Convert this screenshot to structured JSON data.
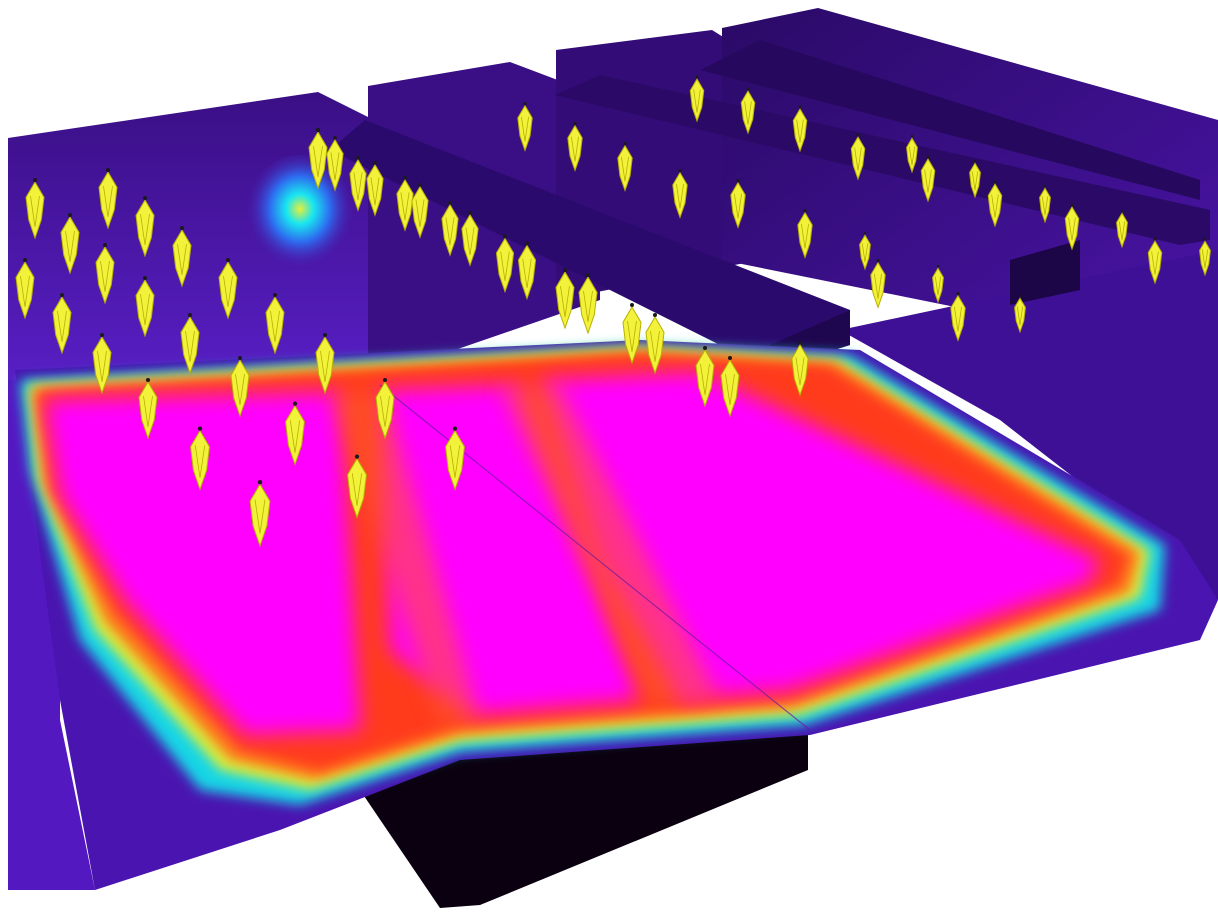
{
  "scene": {
    "kind": "3D false-color illuminance rendering of a room with ceiling luminaires",
    "colors": {
      "background": "#ffffff",
      "wall_dark": "#2a0a66",
      "wall_mid": "#4a14a8",
      "wall_light": "#6a2be0",
      "hotspot_cyan": "#19e6f0",
      "hotspot_yellow": "#e6ef3a",
      "floor_peak": "#ff00ff",
      "floor_red": "#ff3a1a",
      "floor_orange": "#ff7a1a",
      "floor_yellow": "#d8f03a",
      "floor_cyan": "#19d6e6",
      "base_black": "#0a0010",
      "luminaire": "#f2f23a",
      "luminaire_stroke": "#b8b000"
    },
    "luminaire_icon": "crystal-lamp-icon"
  }
}
